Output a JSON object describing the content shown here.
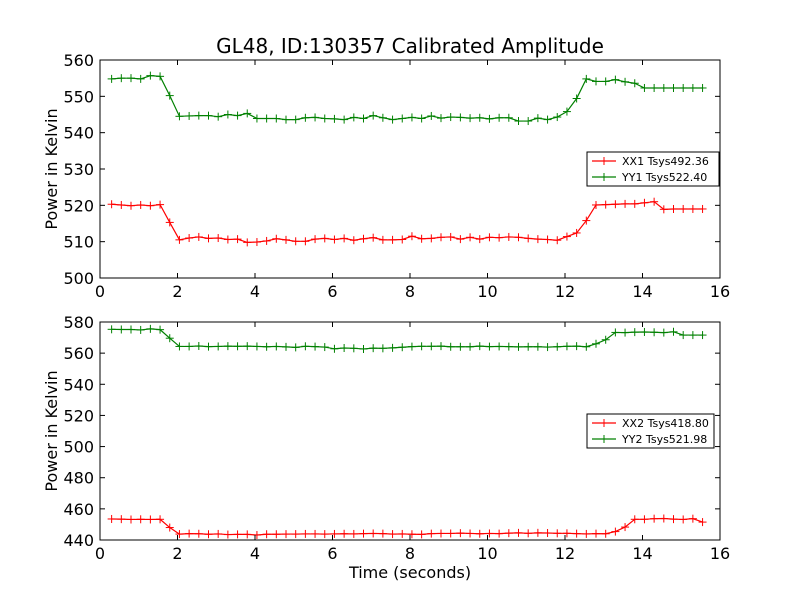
{
  "title": "GL48, ID:130357 Calibrated Amplitude",
  "xlabel": "Time (seconds)",
  "colors": {
    "red": "#ff0000",
    "green": "#008000"
  },
  "chart_data": [
    {
      "type": "line",
      "title": "GL48, ID:130357 Calibrated Amplitude",
      "xlabel": "",
      "ylabel": "Power in Kelvin",
      "xlim": [
        0,
        16
      ],
      "ylim": [
        500,
        560
      ],
      "xticks": [
        0,
        2,
        4,
        6,
        8,
        10,
        12,
        14,
        16
      ],
      "yticks": [
        500,
        510,
        520,
        530,
        540,
        550,
        560
      ],
      "grid": false,
      "legend_position": "center-right",
      "x": [
        0.3,
        0.55,
        0.8,
        1.05,
        1.3,
        1.55,
        1.8,
        2.05,
        2.3,
        2.55,
        2.8,
        3.05,
        3.3,
        3.55,
        3.8,
        4.05,
        4.3,
        4.55,
        4.8,
        5.05,
        5.3,
        5.55,
        5.8,
        6.05,
        6.3,
        6.55,
        6.8,
        7.05,
        7.3,
        7.55,
        7.8,
        8.05,
        8.3,
        8.55,
        8.8,
        9.05,
        9.3,
        9.55,
        9.8,
        10.05,
        10.3,
        10.55,
        10.8,
        11.05,
        11.3,
        11.55,
        11.8,
        12.05,
        12.3,
        12.55,
        12.8,
        13.05,
        13.3,
        13.55,
        13.8,
        14.05,
        14.3,
        14.55,
        14.8,
        15.05,
        15.3,
        15.55
      ],
      "series": [
        {
          "name": "XX1 Tsys492.36",
          "color": "#ff0000",
          "values": [
            520.3,
            520.1,
            519.9,
            520.1,
            519.9,
            520.2,
            515.3,
            510.5,
            511.0,
            511.3,
            510.9,
            511.0,
            510.6,
            510.7,
            509.8,
            509.9,
            510.2,
            510.8,
            510.5,
            510.1,
            510.1,
            510.7,
            510.9,
            510.6,
            510.9,
            510.4,
            510.8,
            511.1,
            510.5,
            510.5,
            510.6,
            511.5,
            510.8,
            510.9,
            511.2,
            511.3,
            510.7,
            511.2,
            510.7,
            511.2,
            511.1,
            511.3,
            511.2,
            510.9,
            510.7,
            510.6,
            510.4,
            511.4,
            512.4,
            515.8,
            520.1,
            520.2,
            520.3,
            520.4,
            520.4,
            520.7,
            521.0,
            518.9,
            519.0,
            519.0,
            519.0,
            519.0
          ]
        },
        {
          "name": "YY1 Tsys522.40",
          "color": "#008000",
          "values": [
            554.8,
            555.0,
            555.0,
            554.8,
            555.7,
            555.5,
            550.2,
            544.5,
            544.6,
            544.7,
            544.7,
            544.4,
            545.0,
            544.7,
            545.3,
            543.9,
            543.9,
            543.9,
            543.6,
            543.6,
            544.1,
            544.2,
            543.9,
            543.8,
            543.6,
            544.2,
            543.9,
            544.7,
            544.1,
            543.6,
            543.9,
            544.2,
            543.9,
            544.6,
            544.0,
            544.3,
            544.2,
            544.0,
            544.1,
            543.8,
            544.1,
            544.1,
            543.2,
            543.2,
            544.0,
            543.6,
            544.3,
            545.8,
            549.4,
            554.8,
            554.1,
            554.1,
            554.6,
            554.0,
            553.6,
            552.3,
            552.3,
            552.3,
            552.3,
            552.3,
            552.3,
            552.3
          ]
        }
      ]
    },
    {
      "type": "line",
      "title": "",
      "xlabel": "Time (seconds)",
      "ylabel": "Power in Kelvin",
      "xlim": [
        0,
        16
      ],
      "ylim": [
        440,
        580
      ],
      "xticks": [
        0,
        2,
        4,
        6,
        8,
        10,
        12,
        14,
        16
      ],
      "yticks": [
        440,
        460,
        480,
        500,
        520,
        540,
        560,
        580
      ],
      "grid": false,
      "legend_position": "center-right",
      "x": [
        0.3,
        0.55,
        0.8,
        1.05,
        1.3,
        1.55,
        1.8,
        2.05,
        2.3,
        2.55,
        2.8,
        3.05,
        3.3,
        3.55,
        3.8,
        4.05,
        4.3,
        4.55,
        4.8,
        5.05,
        5.3,
        5.55,
        5.8,
        6.05,
        6.3,
        6.55,
        6.8,
        7.05,
        7.3,
        7.55,
        7.8,
        8.05,
        8.3,
        8.55,
        8.8,
        9.05,
        9.3,
        9.55,
        9.8,
        10.05,
        10.3,
        10.55,
        10.8,
        11.05,
        11.3,
        11.55,
        11.8,
        12.05,
        12.3,
        12.55,
        12.8,
        13.05,
        13.3,
        13.55,
        13.8,
        14.05,
        14.3,
        14.55,
        14.8,
        15.05,
        15.3,
        15.55
      ],
      "series": [
        {
          "name": "XX2 Tsys418.80",
          "color": "#ff0000",
          "values": [
            453.5,
            453.4,
            453.2,
            453.3,
            453.2,
            453.3,
            448.0,
            443.8,
            444.1,
            444.0,
            443.7,
            443.9,
            443.5,
            443.6,
            443.6,
            443.2,
            443.7,
            443.7,
            443.8,
            443.8,
            443.9,
            443.9,
            443.8,
            443.9,
            444.0,
            443.9,
            444.1,
            444.2,
            444.1,
            443.8,
            443.9,
            443.7,
            443.6,
            444.1,
            444.2,
            444.2,
            444.4,
            444.2,
            444.0,
            444.2,
            444.1,
            444.4,
            444.6,
            444.3,
            444.6,
            444.5,
            444.3,
            444.3,
            444.1,
            443.9,
            444.1,
            444.0,
            445.4,
            448.3,
            453.3,
            453.3,
            453.7,
            453.8,
            453.4,
            453.2,
            453.7,
            451.5
          ]
        },
        {
          "name": "YY2 Tsys521.98",
          "color": "#008000",
          "values": [
            575.3,
            575.2,
            575.2,
            574.9,
            575.6,
            575.1,
            569.6,
            564.3,
            564.3,
            564.6,
            564.2,
            564.3,
            564.5,
            564.4,
            564.5,
            564.3,
            564.1,
            564.3,
            564.0,
            563.7,
            564.4,
            564.2,
            563.9,
            562.8,
            563.3,
            563.1,
            562.7,
            563.2,
            563.1,
            563.4,
            563.8,
            564.2,
            564.4,
            564.4,
            564.5,
            564.1,
            564.1,
            564.1,
            564.5,
            564.2,
            564.3,
            564.2,
            564.0,
            564.1,
            564.1,
            563.9,
            564.1,
            564.4,
            564.5,
            564.1,
            566.0,
            568.6,
            573.3,
            573.2,
            573.5,
            573.6,
            573.4,
            573.2,
            573.7,
            571.6,
            571.6,
            571.6
          ]
        }
      ]
    }
  ]
}
